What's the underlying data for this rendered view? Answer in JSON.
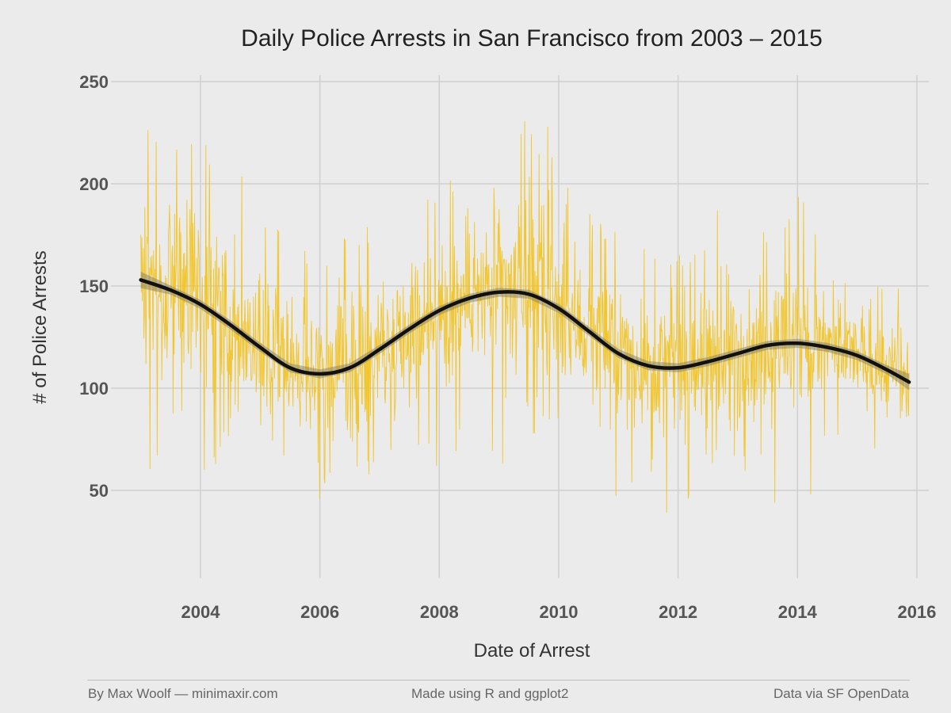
{
  "chart_data": {
    "type": "line",
    "title": "Daily Police Arrests in San Francisco from 2003 – 2015",
    "xlabel": "Date of Arrest",
    "ylabel": "# of Police Arrests",
    "x_range": [
      2002.5,
      2016.2
    ],
    "ylim": [
      7,
      257
    ],
    "x_ticks": [
      2004,
      2006,
      2008,
      2010,
      2012,
      2014,
      2016
    ],
    "y_ticks": [
      50,
      100,
      150,
      200,
      250
    ],
    "grid": true,
    "legend": "none",
    "series": [
      {
        "kind": "daily-arrests",
        "color": "#f2c21b",
        "x_start": 2003.0,
        "x_end": 2015.87,
        "points_shown": "daily values, approx. 100–180 range with spikes",
        "envelope_upper": [
          [
            2003.0,
            232
          ],
          [
            2003.3,
            222
          ],
          [
            2003.7,
            228
          ],
          [
            2004.0,
            222
          ],
          [
            2004.3,
            214
          ],
          [
            2004.7,
            205
          ],
          [
            2005.0,
            187
          ],
          [
            2005.5,
            180
          ],
          [
            2006.0,
            165
          ],
          [
            2006.5,
            180
          ],
          [
            2007.0,
            182
          ],
          [
            2007.5,
            188
          ],
          [
            2008.0,
            199
          ],
          [
            2008.5,
            212
          ],
          [
            2009.0,
            220
          ],
          [
            2009.4,
            230
          ],
          [
            2009.7,
            243
          ],
          [
            2010.0,
            205
          ],
          [
            2010.5,
            192
          ],
          [
            2011.0,
            178
          ],
          [
            2011.5,
            168
          ],
          [
            2012.0,
            170
          ],
          [
            2012.5,
            178
          ],
          [
            2012.9,
            201
          ],
          [
            2013.3,
            180
          ],
          [
            2013.7,
            187
          ],
          [
            2014.0,
            197
          ],
          [
            2014.5,
            168
          ],
          [
            2015.0,
            157
          ],
          [
            2015.5,
            153
          ],
          [
            2015.87,
            152
          ]
        ],
        "envelope_lower": [
          [
            2003.0,
            82
          ],
          [
            2003.2,
            49
          ],
          [
            2003.6,
            90
          ],
          [
            2004.0,
            49
          ],
          [
            2004.5,
            75
          ],
          [
            2005.0,
            54
          ],
          [
            2005.5,
            60
          ],
          [
            2006.0,
            45
          ],
          [
            2006.5,
            55
          ],
          [
            2007.0,
            52
          ],
          [
            2007.5,
            72
          ],
          [
            2008.0,
            59
          ],
          [
            2008.5,
            72
          ],
          [
            2009.0,
            61
          ],
          [
            2009.5,
            75
          ],
          [
            2010.0,
            80
          ],
          [
            2010.5,
            73
          ],
          [
            2011.0,
            44
          ],
          [
            2011.5,
            60
          ],
          [
            2011.9,
            29
          ],
          [
            2012.4,
            56
          ],
          [
            2012.9,
            55
          ],
          [
            2013.4,
            62
          ],
          [
            2013.95,
            15
          ],
          [
            2014.5,
            70
          ],
          [
            2015.0,
            60
          ],
          [
            2015.5,
            72
          ],
          [
            2015.87,
            76
          ]
        ]
      },
      {
        "kind": "smooth-trend",
        "color": "#111111",
        "points": [
          [
            2003.0,
            153
          ],
          [
            2003.5,
            148
          ],
          [
            2004.0,
            141
          ],
          [
            2004.5,
            131
          ],
          [
            2005.0,
            120
          ],
          [
            2005.5,
            110
          ],
          [
            2006.0,
            107
          ],
          [
            2006.5,
            110
          ],
          [
            2007.0,
            119
          ],
          [
            2007.5,
            129
          ],
          [
            2008.0,
            138
          ],
          [
            2008.5,
            144
          ],
          [
            2009.0,
            147
          ],
          [
            2009.5,
            146
          ],
          [
            2010.0,
            139
          ],
          [
            2010.5,
            128
          ],
          [
            2011.0,
            117
          ],
          [
            2011.5,
            111
          ],
          [
            2012.0,
            110
          ],
          [
            2012.5,
            113
          ],
          [
            2013.0,
            117
          ],
          [
            2013.5,
            121
          ],
          [
            2014.0,
            122
          ],
          [
            2014.5,
            120
          ],
          [
            2015.0,
            116
          ],
          [
            2015.5,
            109
          ],
          [
            2015.87,
            103
          ]
        ]
      }
    ]
  },
  "footer": {
    "left": "By Max Woolf — minimaxir.com",
    "center": "Made using R and ggplot2",
    "right": "Data via SF OpenData"
  }
}
